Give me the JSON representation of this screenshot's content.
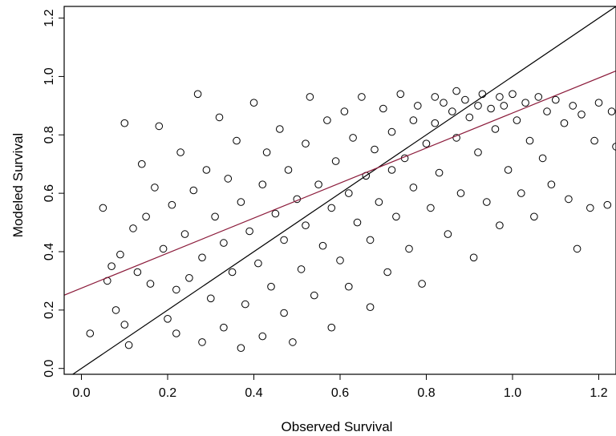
{
  "chart_data": {
    "type": "scatter",
    "title": "",
    "xlabel": "Observed Survival",
    "ylabel": "Modeled Survival",
    "xlim": [
      -0.04,
      1.24
    ],
    "ylim": [
      -0.02,
      1.24
    ],
    "x_ticks": [
      "0.0",
      "0.2",
      "0.4",
      "0.6",
      "0.8",
      "1.0",
      "1.2"
    ],
    "y_ticks": [
      "0.0",
      "0.2",
      "0.4",
      "0.6",
      "0.8",
      "1.0",
      "1.2"
    ],
    "grid": false,
    "marker": "open-circle",
    "lines": [
      {
        "kind": "identity",
        "intercept": 0.0,
        "slope": 1.0,
        "color": "#000000"
      },
      {
        "kind": "regression-fit",
        "intercept": 0.275,
        "slope": 0.6,
        "color": "#8b1a3a"
      }
    ],
    "points": [
      [
        0.02,
        0.12
      ],
      [
        0.05,
        0.55
      ],
      [
        0.06,
        0.3
      ],
      [
        0.07,
        0.35
      ],
      [
        0.08,
        0.2
      ],
      [
        0.09,
        0.39
      ],
      [
        0.1,
        0.84
      ],
      [
        0.1,
        0.15
      ],
      [
        0.11,
        0.08
      ],
      [
        0.12,
        0.48
      ],
      [
        0.13,
        0.33
      ],
      [
        0.14,
        0.7
      ],
      [
        0.15,
        0.52
      ],
      [
        0.16,
        0.29
      ],
      [
        0.17,
        0.62
      ],
      [
        0.18,
        0.83
      ],
      [
        0.19,
        0.41
      ],
      [
        0.2,
        0.17
      ],
      [
        0.21,
        0.56
      ],
      [
        0.22,
        0.12
      ],
      [
        0.22,
        0.27
      ],
      [
        0.23,
        0.74
      ],
      [
        0.24,
        0.46
      ],
      [
        0.25,
        0.31
      ],
      [
        0.26,
        0.61
      ],
      [
        0.27,
        0.94
      ],
      [
        0.28,
        0.09
      ],
      [
        0.28,
        0.38
      ],
      [
        0.29,
        0.68
      ],
      [
        0.3,
        0.24
      ],
      [
        0.31,
        0.52
      ],
      [
        0.32,
        0.86
      ],
      [
        0.33,
        0.14
      ],
      [
        0.33,
        0.43
      ],
      [
        0.34,
        0.65
      ],
      [
        0.35,
        0.33
      ],
      [
        0.36,
        0.78
      ],
      [
        0.37,
        0.07
      ],
      [
        0.37,
        0.57
      ],
      [
        0.38,
        0.22
      ],
      [
        0.39,
        0.47
      ],
      [
        0.4,
        0.91
      ],
      [
        0.41,
        0.36
      ],
      [
        0.42,
        0.63
      ],
      [
        0.42,
        0.11
      ],
      [
        0.43,
        0.74
      ],
      [
        0.44,
        0.28
      ],
      [
        0.45,
        0.53
      ],
      [
        0.46,
        0.82
      ],
      [
        0.47,
        0.19
      ],
      [
        0.47,
        0.44
      ],
      [
        0.48,
        0.68
      ],
      [
        0.49,
        0.09
      ],
      [
        0.5,
        0.58
      ],
      [
        0.51,
        0.34
      ],
      [
        0.52,
        0.77
      ],
      [
        0.52,
        0.49
      ],
      [
        0.53,
        0.93
      ],
      [
        0.54,
        0.25
      ],
      [
        0.55,
        0.63
      ],
      [
        0.56,
        0.42
      ],
      [
        0.57,
        0.85
      ],
      [
        0.58,
        0.14
      ],
      [
        0.58,
        0.55
      ],
      [
        0.59,
        0.71
      ],
      [
        0.6,
        0.37
      ],
      [
        0.61,
        0.88
      ],
      [
        0.62,
        0.6
      ],
      [
        0.62,
        0.28
      ],
      [
        0.63,
        0.79
      ],
      [
        0.64,
        0.5
      ],
      [
        0.65,
        0.93
      ],
      [
        0.66,
        0.66
      ],
      [
        0.67,
        0.21
      ],
      [
        0.67,
        0.44
      ],
      [
        0.68,
        0.75
      ],
      [
        0.69,
        0.57
      ],
      [
        0.7,
        0.89
      ],
      [
        0.71,
        0.33
      ],
      [
        0.72,
        0.68
      ],
      [
        0.72,
        0.81
      ],
      [
        0.73,
        0.52
      ],
      [
        0.74,
        0.94
      ],
      [
        0.75,
        0.72
      ],
      [
        0.76,
        0.41
      ],
      [
        0.77,
        0.85
      ],
      [
        0.77,
        0.62
      ],
      [
        0.78,
        0.9
      ],
      [
        0.79,
        0.29
      ],
      [
        0.8,
        0.77
      ],
      [
        0.81,
        0.55
      ],
      [
        0.82,
        0.93
      ],
      [
        0.82,
        0.84
      ],
      [
        0.83,
        0.67
      ],
      [
        0.84,
        0.91
      ],
      [
        0.85,
        0.46
      ],
      [
        0.86,
        0.88
      ],
      [
        0.87,
        0.79
      ],
      [
        0.87,
        0.95
      ],
      [
        0.88,
        0.6
      ],
      [
        0.89,
        0.92
      ],
      [
        0.9,
        0.86
      ],
      [
        0.91,
        0.38
      ],
      [
        0.92,
        0.9
      ],
      [
        0.92,
        0.74
      ],
      [
        0.93,
        0.94
      ],
      [
        0.94,
        0.57
      ],
      [
        0.95,
        0.89
      ],
      [
        0.96,
        0.82
      ],
      [
        0.97,
        0.93
      ],
      [
        0.97,
        0.49
      ],
      [
        0.98,
        0.9
      ],
      [
        0.99,
        0.68
      ],
      [
        1.0,
        0.94
      ],
      [
        1.01,
        0.85
      ],
      [
        1.02,
        0.6
      ],
      [
        1.03,
        0.91
      ],
      [
        1.04,
        0.78
      ],
      [
        1.05,
        0.52
      ],
      [
        1.06,
        0.93
      ],
      [
        1.07,
        0.72
      ],
      [
        1.08,
        0.88
      ],
      [
        1.09,
        0.63
      ],
      [
        1.1,
        0.92
      ],
      [
        1.12,
        0.84
      ],
      [
        1.13,
        0.58
      ],
      [
        1.14,
        0.9
      ],
      [
        1.15,
        0.41
      ],
      [
        1.16,
        0.87
      ],
      [
        1.18,
        0.55
      ],
      [
        1.19,
        0.78
      ],
      [
        1.2,
        0.91
      ],
      [
        1.22,
        0.56
      ],
      [
        1.23,
        0.88
      ],
      [
        1.24,
        0.76
      ]
    ]
  }
}
